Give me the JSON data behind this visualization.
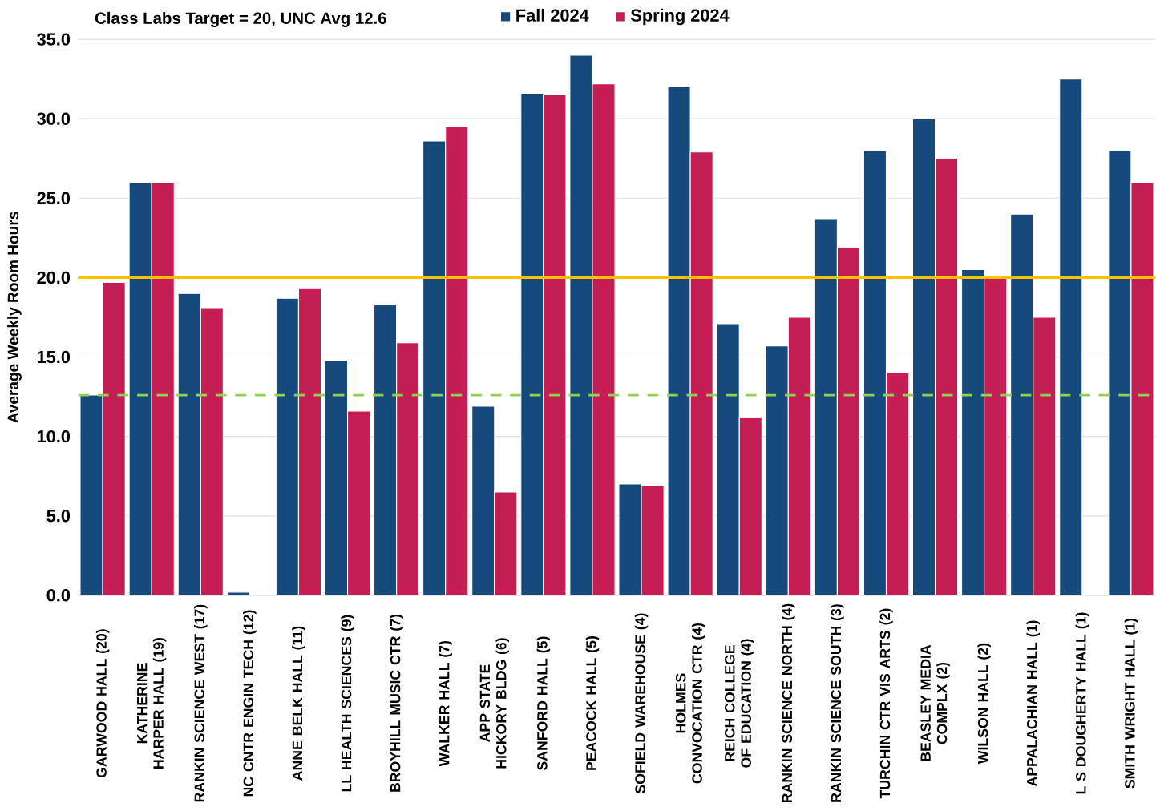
{
  "chart_data": {
    "type": "bar",
    "title": "Class Labs Target = 20, UNC Avg 12.6",
    "ylabel": "Average Weekly Room Hours",
    "categories": [
      "GARWOOD HALL (20)",
      "KATHERINE HARPER HALL (19)",
      "RANKIN SCIENCE WEST (17)",
      "NC CNTR ENGIN TECH (12)",
      "ANNE BELK HALL (11)",
      "LL HEALTH SCIENCES (9)",
      "BROYHILL MUSIC CTR (7)",
      "WALKER HALL (7)",
      "APP STATE HICKORY BLDG (6)",
      "SANFORD HALL (5)",
      "PEACOCK HALL (5)",
      "SOFIELD WAREHOUSE (4)",
      "HOLMES CONVOCATION CTR (4)",
      "REICH COLLEGE OF EDUCATION (4)",
      "RANKIN SCIENCE NORTH (4)",
      "RANKIN SCIENCE SOUTH (3)",
      "TURCHIN CTR VIS ARTS (2)",
      "BEASLEY MEDIA COMPLX (2)",
      "WILSON HALL (2)",
      "APPALACHIAN HALL (1)",
      "L S DOUGHERTY HALL (1)",
      "SMITH WRIGHT HALL (1)"
    ],
    "series": [
      {
        "name": "Fall 2024",
        "color": "#174a7c",
        "values": [
          12.6,
          26.0,
          19.0,
          0.2,
          18.7,
          14.8,
          18.3,
          28.6,
          11.9,
          31.6,
          34.0,
          7.0,
          32.0,
          17.1,
          15.7,
          23.7,
          28.0,
          30.0,
          20.5,
          24.0,
          32.5,
          28.0
        ]
      },
      {
        "name": "Spring 2024",
        "color": "#c41e55",
        "values": [
          19.7,
          26.0,
          18.1,
          null,
          19.3,
          11.6,
          15.9,
          29.5,
          6.5,
          31.5,
          32.2,
          6.9,
          27.9,
          11.2,
          17.5,
          21.9,
          14.0,
          27.5,
          20.0,
          17.5,
          null,
          26.0
        ]
      }
    ],
    "ylim": [
      0,
      35
    ],
    "yticks": [
      {
        "value": 0,
        "label": "0.0"
      },
      {
        "value": 5,
        "label": "5.0"
      },
      {
        "value": 10,
        "label": "10.0"
      },
      {
        "value": 15,
        "label": "15.0"
      },
      {
        "value": 20,
        "label": "20.0"
      },
      {
        "value": 25,
        "label": "25.0"
      },
      {
        "value": 30,
        "label": "30.0"
      },
      {
        "value": 35,
        "label": "35.0"
      }
    ],
    "ref_lines": [
      {
        "axis": "y",
        "value": 20,
        "color": "#ffc000",
        "line_style": "solid"
      },
      {
        "axis": "y",
        "value": 12.6,
        "color": "#92d050",
        "line_style": "dashed"
      }
    ],
    "grid": "y",
    "legend": "top"
  }
}
